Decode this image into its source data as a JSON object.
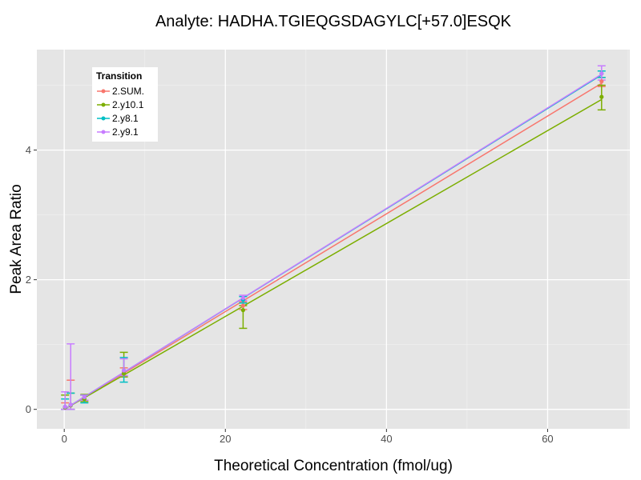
{
  "chart_data": {
    "type": "line",
    "title": "Analyte: HADHA.TGIEQGSDAGYLC[+57.0]ESQK",
    "xlabel": "Theoretical Concentration (fmol/ug)",
    "ylabel": "Peak Area Ratio",
    "xlim": [
      -3.4,
      70.2
    ],
    "ylim": [
      -0.3,
      5.55
    ],
    "xticks": [
      0,
      20,
      40,
      60
    ],
    "yticks": [
      0,
      2,
      4
    ],
    "xtick_labels": [
      "0",
      "20",
      "40",
      "60"
    ],
    "ytick_labels": [
      "0",
      "2",
      "4"
    ],
    "grid": true,
    "legend": {
      "title": "Transition",
      "position": "top-left"
    },
    "series": [
      {
        "name": "2.SUM.",
        "color": "#F8766D",
        "x": [
          0.1,
          0.8,
          2.5,
          7.4,
          22.2,
          66.7
        ],
        "y": [
          0.04,
          0.07,
          0.18,
          0.58,
          1.6,
          5.06
        ],
        "err_low": [
          0.0,
          0.0,
          0.14,
          0.52,
          1.54,
          4.98
        ],
        "err_high": [
          0.1,
          0.45,
          0.22,
          0.64,
          1.66,
          5.12
        ],
        "fit": {
          "x": [
            0,
            66.7
          ],
          "y": [
            0.0,
            5.03
          ]
        }
      },
      {
        "name": "2.y10.1",
        "color": "#7CAE00",
        "x": [
          0.1,
          0.8,
          2.5,
          7.4,
          22.2,
          66.7
        ],
        "y": [
          0.03,
          0.06,
          0.16,
          0.55,
          1.53,
          4.82
        ],
        "err_low": [
          0.0,
          0.0,
          0.12,
          0.5,
          1.25,
          4.62
        ],
        "err_high": [
          0.22,
          0.25,
          0.23,
          0.88,
          1.6,
          5.0
        ],
        "fit": {
          "x": [
            0,
            66.7
          ],
          "y": [
            0.0,
            4.78
          ]
        }
      },
      {
        "name": "2.y8.1",
        "color": "#00BFC4",
        "x": [
          0.1,
          0.8,
          2.5,
          7.4,
          22.2,
          66.7
        ],
        "y": [
          0.04,
          0.07,
          0.19,
          0.6,
          1.69,
          5.18
        ],
        "err_low": [
          0.0,
          0.0,
          0.1,
          0.42,
          1.64,
          5.12
        ],
        "err_high": [
          0.16,
          0.25,
          0.22,
          0.8,
          1.74,
          5.22
        ],
        "fit": {
          "x": [
            0,
            66.7
          ],
          "y": [
            0.0,
            5.16
          ]
        }
      },
      {
        "name": "2.y9.1",
        "color": "#C77CFF",
        "x": [
          0.1,
          0.8,
          2.5,
          7.4,
          22.2,
          66.7
        ],
        "y": [
          0.04,
          0.07,
          0.19,
          0.6,
          1.72,
          5.18
        ],
        "err_low": [
          0.0,
          0.0,
          0.14,
          0.52,
          1.68,
          5.08
        ],
        "err_high": [
          0.27,
          1.01,
          0.22,
          0.78,
          1.76,
          5.3
        ],
        "fit": {
          "x": [
            0,
            66.7
          ],
          "y": [
            0.0,
            5.17
          ]
        }
      }
    ]
  }
}
